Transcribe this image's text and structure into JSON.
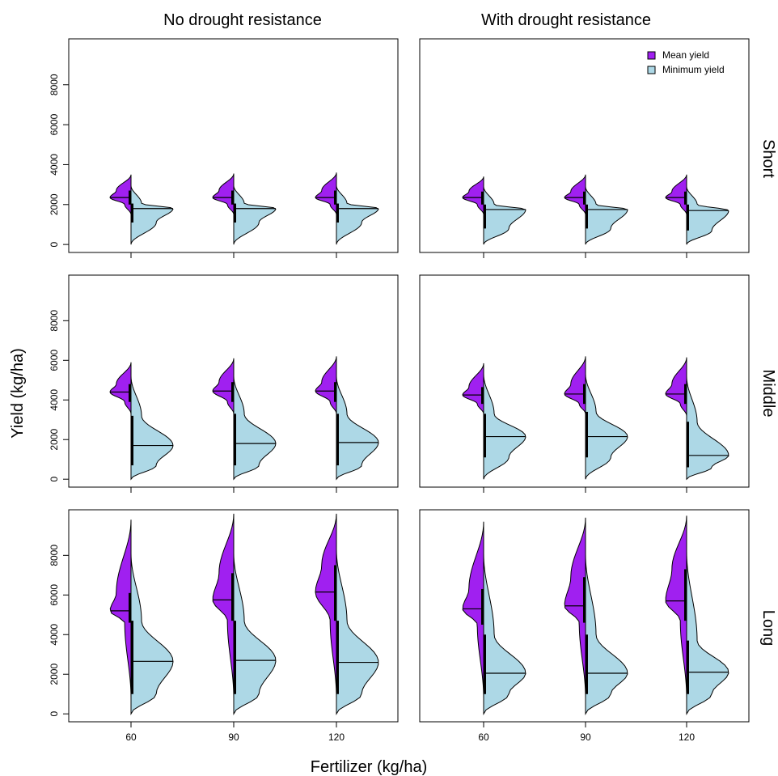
{
  "chart_data": {
    "type": "split-violin",
    "xlabel": "Fertilizer (kg/ha)",
    "ylabel": "Yield (kg/ha)",
    "columns": [
      "No drought resistance",
      "With drought resistance"
    ],
    "rows": [
      "Short",
      "Middle",
      "Long"
    ],
    "x_categories": [
      "60",
      "90",
      "120"
    ],
    "y_ticks": [
      "0",
      "2000",
      "4000",
      "6000",
      "8000"
    ],
    "ylim": [
      -400,
      10300
    ],
    "legend": {
      "position": "top-right",
      "entries": [
        {
          "label": "Mean yield",
          "color": "#a020f0"
        },
        {
          "label": "Minimum yield",
          "color": "#add8e6"
        }
      ]
    },
    "series_colors": {
      "mean": "#a020f0",
      "min": "#add8e6"
    },
    "panels": [
      {
        "row": "Short",
        "col": "No drought resistance",
        "violins": [
          {
            "x": "60",
            "mean": {
              "min": 1500,
              "max": 3500,
              "median": 2350,
              "q1": 2000,
              "q3": 2700
            },
            "min": {
              "min": 0,
              "max": 2950,
              "median": 1800,
              "q1": 1100,
              "q3": 2050
            }
          },
          {
            "x": "90",
            "mean": {
              "min": 1500,
              "max": 3550,
              "median": 2350,
              "q1": 2000,
              "q3": 2700
            },
            "min": {
              "min": 0,
              "max": 2950,
              "median": 1800,
              "q1": 1100,
              "q3": 2050
            }
          },
          {
            "x": "120",
            "mean": {
              "min": 1500,
              "max": 3600,
              "median": 2350,
              "q1": 2000,
              "q3": 2700
            },
            "min": {
              "min": 0,
              "max": 2950,
              "median": 1800,
              "q1": 1100,
              "q3": 2050
            }
          }
        ]
      },
      {
        "row": "Short",
        "col": "With drought resistance",
        "violins": [
          {
            "x": "60",
            "mean": {
              "min": 1500,
              "max": 3400,
              "median": 2350,
              "q1": 2000,
              "q3": 2650
            },
            "min": {
              "min": 0,
              "max": 2900,
              "median": 1750,
              "q1": 800,
              "q3": 2000
            }
          },
          {
            "x": "90",
            "mean": {
              "min": 1500,
              "max": 3500,
              "median": 2350,
              "q1": 2000,
              "q3": 2650
            },
            "min": {
              "min": 0,
              "max": 2900,
              "median": 1750,
              "q1": 800,
              "q3": 2000
            }
          },
          {
            "x": "120",
            "mean": {
              "min": 1500,
              "max": 3500,
              "median": 2350,
              "q1": 2000,
              "q3": 2650
            },
            "min": {
              "min": 0,
              "max": 2900,
              "median": 1700,
              "q1": 700,
              "q3": 2000
            }
          }
        ]
      },
      {
        "row": "Middle",
        "col": "No drought resistance",
        "violins": [
          {
            "x": "60",
            "mean": {
              "min": 3300,
              "max": 5900,
              "median": 4400,
              "q1": 3900,
              "q3": 4800
            },
            "min": {
              "min": 0,
              "max": 5200,
              "median": 1700,
              "q1": 700,
              "q3": 3200
            }
          },
          {
            "x": "90",
            "mean": {
              "min": 3300,
              "max": 6100,
              "median": 4450,
              "q1": 3900,
              "q3": 4900
            },
            "min": {
              "min": 0,
              "max": 5200,
              "median": 1800,
              "q1": 700,
              "q3": 3300
            }
          },
          {
            "x": "120",
            "mean": {
              "min": 3300,
              "max": 6200,
              "median": 4450,
              "q1": 3900,
              "q3": 4900
            },
            "min": {
              "min": 0,
              "max": 5200,
              "median": 1850,
              "q1": 700,
              "q3": 3300
            }
          }
        ]
      },
      {
        "row": "Middle",
        "col": "With drought resistance",
        "violins": [
          {
            "x": "60",
            "mean": {
              "min": 3300,
              "max": 5850,
              "median": 4250,
              "q1": 3800,
              "q3": 4650
            },
            "min": {
              "min": 0,
              "max": 5300,
              "median": 2150,
              "q1": 1100,
              "q3": 3300
            }
          },
          {
            "x": "90",
            "mean": {
              "min": 3300,
              "max": 6200,
              "median": 4300,
              "q1": 3800,
              "q3": 4800
            },
            "min": {
              "min": 0,
              "max": 5300,
              "median": 2150,
              "q1": 1100,
              "q3": 3400
            }
          },
          {
            "x": "120",
            "mean": {
              "min": 3200,
              "max": 6150,
              "median": 4300,
              "q1": 3800,
              "q3": 4800
            },
            "min": {
              "min": 0,
              "max": 5200,
              "median": 1200,
              "q1": 600,
              "q3": 2900
            }
          }
        ]
      },
      {
        "row": "Long",
        "col": "No drought resistance",
        "violins": [
          {
            "x": "60",
            "mean": {
              "min": 800,
              "max": 9800,
              "median": 5200,
              "q1": 4600,
              "q3": 6100
            },
            "min": {
              "min": 0,
              "max": 8100,
              "median": 2650,
              "q1": 1000,
              "q3": 4700
            }
          },
          {
            "x": "90",
            "mean": {
              "min": 800,
              "max": 10100,
              "median": 5750,
              "q1": 4700,
              "q3": 7100
            },
            "min": {
              "min": 0,
              "max": 8100,
              "median": 2700,
              "q1": 1000,
              "q3": 4700
            }
          },
          {
            "x": "120",
            "mean": {
              "min": 800,
              "max": 10100,
              "median": 6150,
              "q1": 4700,
              "q3": 7500
            },
            "min": {
              "min": 0,
              "max": 8300,
              "median": 2600,
              "q1": 1000,
              "q3": 4700
            }
          }
        ]
      },
      {
        "row": "Long",
        "col": "With drought resistance",
        "violins": [
          {
            "x": "60",
            "mean": {
              "min": 800,
              "max": 9700,
              "median": 5300,
              "q1": 4500,
              "q3": 6300
            },
            "min": {
              "min": 0,
              "max": 8100,
              "median": 2050,
              "q1": 1000,
              "q3": 4000
            }
          },
          {
            "x": "90",
            "mean": {
              "min": 800,
              "max": 9900,
              "median": 5450,
              "q1": 4600,
              "q3": 6900
            },
            "min": {
              "min": 0,
              "max": 8050,
              "median": 2050,
              "q1": 1000,
              "q3": 4000
            }
          },
          {
            "x": "120",
            "mean": {
              "min": 800,
              "max": 10000,
              "median": 5700,
              "q1": 4700,
              "q3": 7300
            },
            "min": {
              "min": 0,
              "max": 8200,
              "median": 2100,
              "q1": 1000,
              "q3": 3700
            }
          }
        ]
      }
    ]
  }
}
